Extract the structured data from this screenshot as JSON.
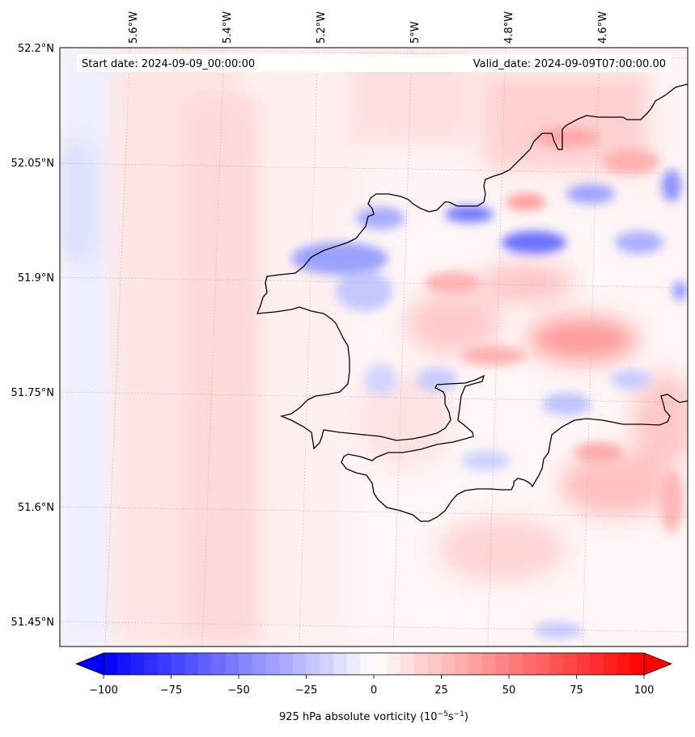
{
  "header": {
    "start_date": "Start date: 2024-09-09_00:00:00",
    "valid_date": "Valid_date: 2024-09-09T07:00:00.00"
  },
  "map": {
    "lon_labels": [
      "5.6°W",
      "5.4°W",
      "5.2°W",
      "5°W",
      "4.8°W",
      "4.6°W"
    ],
    "lat_labels": [
      "52.2°N",
      "52.05°N",
      "51.9°N",
      "51.75°N",
      "51.6°N",
      "51.45°N"
    ],
    "coastline_color": "#000000"
  },
  "colorbar": {
    "ticks": [
      "−100",
      "−75",
      "−50",
      "−25",
      "0",
      "25",
      "50",
      "75",
      "100"
    ],
    "label_prefix": "925 hPa absolute vorticity (10",
    "label_exp1": "−5",
    "label_mid": "s",
    "label_exp2": "−1",
    "label_suffix": ")",
    "cmap": "bwr",
    "min": -100,
    "max": 100,
    "extend": "both"
  }
}
